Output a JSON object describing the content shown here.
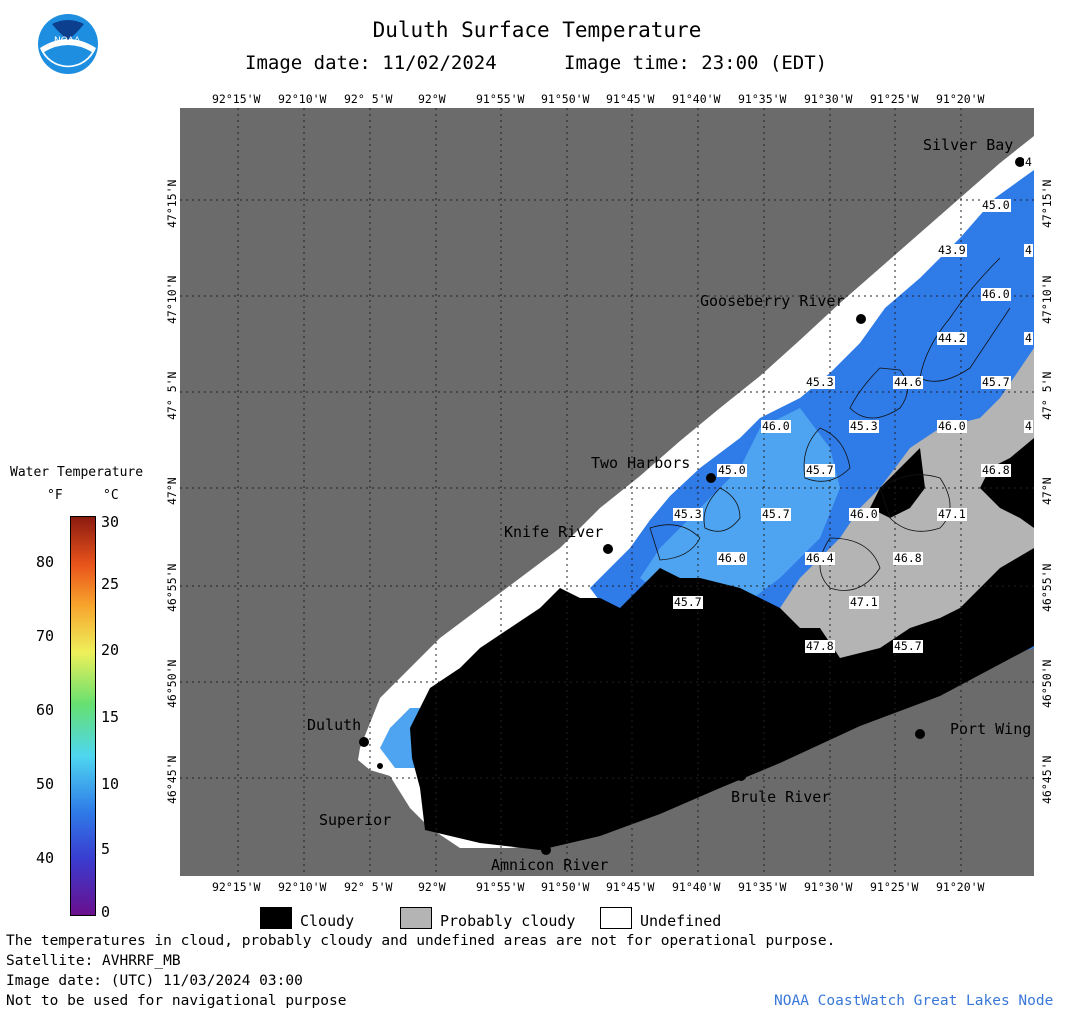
{
  "header": {
    "title": "Duluth Surface Temperature",
    "image_date": "Image date: 11/02/2024",
    "image_time": "Image time: 23:00 (EDT)"
  },
  "logo": {
    "icon": "noaa-logo-icon",
    "text": "NOAA"
  },
  "map": {
    "lon_labels": [
      "92°15'W",
      "92°10'W",
      "92° 5'W",
      "92°W",
      "91°55'W",
      "91°50'W",
      "91°45'W",
      "91°40'W",
      "91°35'W",
      "91°30'W",
      "91°25'W",
      "91°20'W"
    ],
    "lat_labels": [
      "47°15'N",
      "47°10'N",
      "47° 5'N",
      "47°N",
      "46°55'N",
      "46°50'N",
      "46°45'N"
    ],
    "places": {
      "silver_bay": "Silver Bay",
      "gooseberry_river": "Gooseberry River",
      "two_harbors": "Two Harbors",
      "knife_river": "Knife River",
      "duluth": "Duluth",
      "superior": "Superior",
      "amnicon_river": "Amnicon River",
      "brule_river": "Brule River",
      "port_wing": "Port Wing"
    },
    "contour_labels": [
      "45.0",
      "43.9",
      "46.0",
      "44.2",
      "45.3",
      "44.6",
      "45.7",
      "46.0",
      "45.3",
      "46.0",
      "45.0",
      "45.7",
      "46.8",
      "45.3",
      "45.7",
      "46.0",
      "47.1",
      "46.0",
      "46.4",
      "46.8",
      "45.7",
      "47.1",
      "47.8",
      "45.7",
      "4",
      "4",
      "4",
      "4"
    ],
    "colors": {
      "land": "#6b6b6b",
      "water_cold": "#2f7be8",
      "water_light": "#4ea4f0",
      "cloudy": "#000000",
      "probably_cloudy": "#b4b4b4",
      "undefined": "#ffffff"
    }
  },
  "legend": {
    "title": "Water Temperature",
    "unit_f": "°F",
    "unit_c": "°C",
    "f_ticks": [
      "80",
      "70",
      "60",
      "50",
      "40"
    ],
    "c_ticks": [
      "30",
      "25",
      "20",
      "15",
      "10",
      "5",
      "0"
    ],
    "categories": [
      "Cloudy",
      "Probably cloudy",
      "Undefined"
    ]
  },
  "footer": {
    "line1": "The temperatures in cloud, probably cloudy and undefined areas are not for operational purpose.",
    "line2": "Satellite: AVHRRF_MB",
    "line3": "Image date: (UTC) 11/03/2024  03:00",
    "line4": "Not to be used for navigational purpose",
    "credit": "NOAA CoastWatch Great Lakes Node"
  }
}
